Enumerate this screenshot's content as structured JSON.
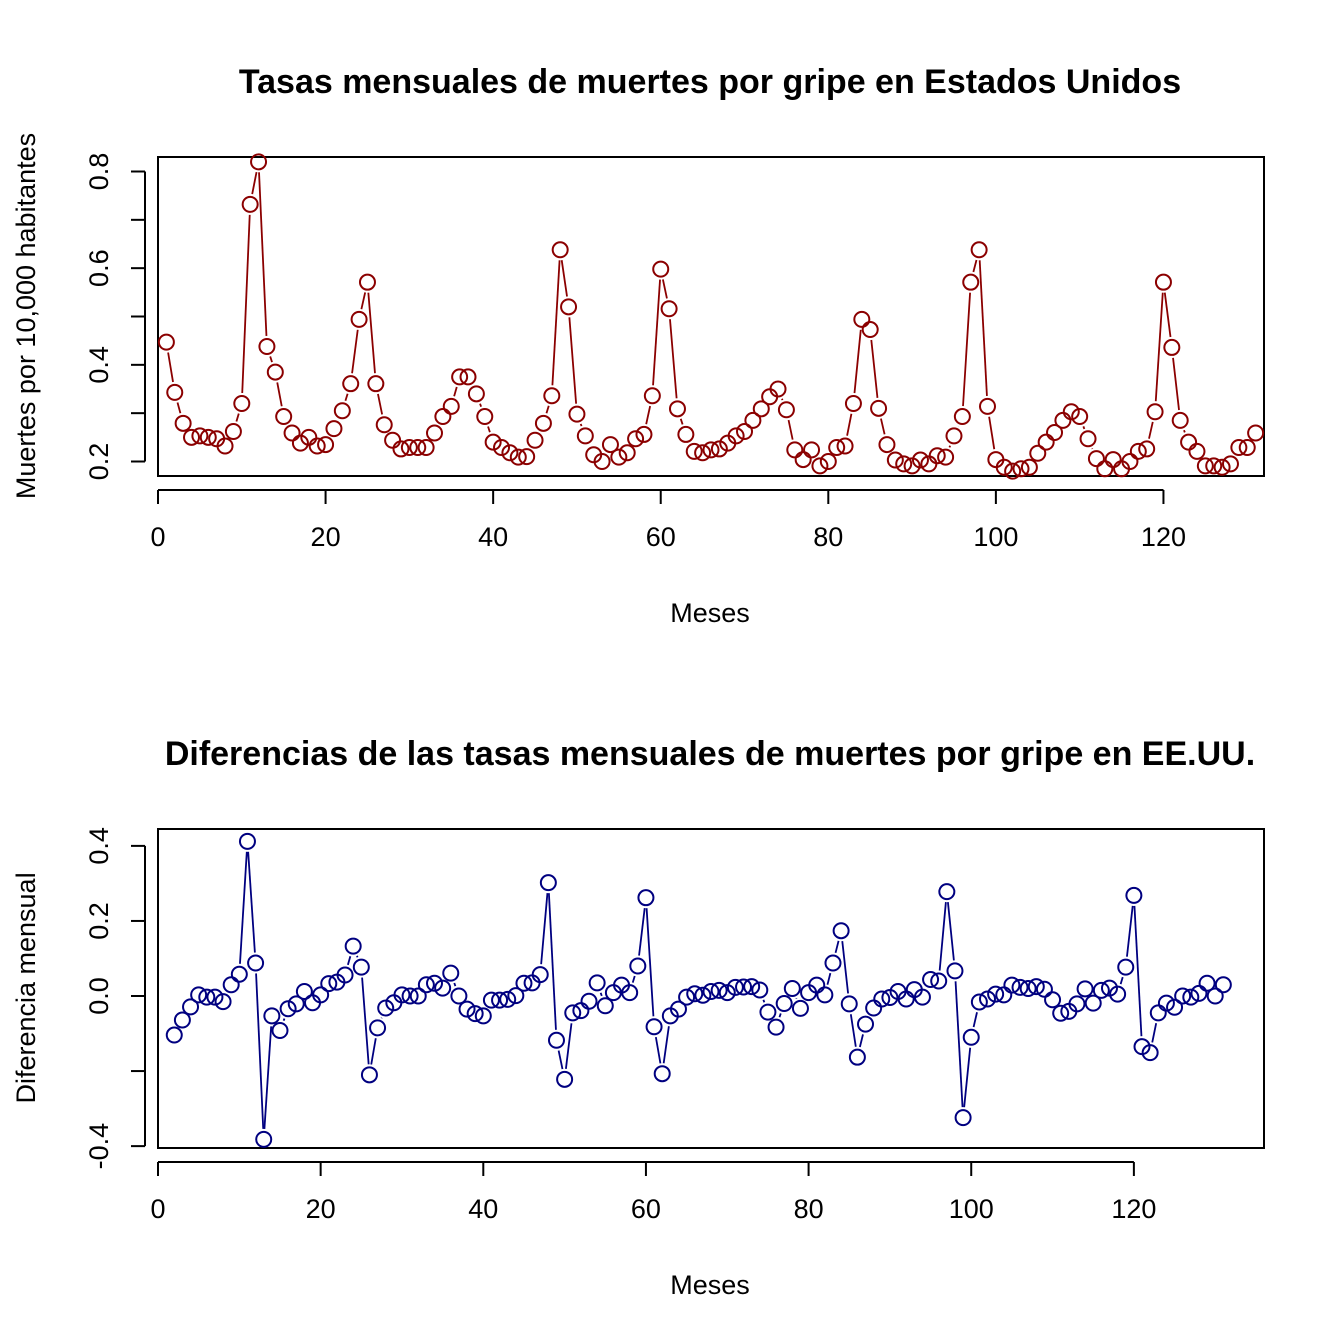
{
  "chart_data": [
    {
      "type": "line",
      "style": "points-and-lines",
      "title": "Tasas mensuales de muertes por gripe en Estados Unidos",
      "xlabel": "Meses",
      "ylabel": "Muertes por 10,000 habitantes",
      "color": "#8b0000",
      "xlim": [
        0,
        132
      ],
      "ylim": [
        0.17,
        0.83
      ],
      "xticks": [
        0,
        20,
        40,
        60,
        80,
        100,
        120
      ],
      "xtick_labels": [
        "0",
        "20",
        "40",
        "60",
        "80",
        "100",
        "120"
      ],
      "yticks": [
        0.2,
        0.4,
        0.6,
        0.8
      ],
      "ytick_labels": [
        "0.2",
        "0.4",
        "0.6",
        "0.8"
      ],
      "yminor": [
        0.3,
        0.5,
        0.7
      ],
      "x_start": 1,
      "values": [
        0.447,
        0.343,
        0.279,
        0.25,
        0.253,
        0.25,
        0.247,
        0.232,
        0.262,
        0.32,
        0.732,
        0.82,
        0.438,
        0.385,
        0.293,
        0.259,
        0.238,
        0.25,
        0.232,
        0.235,
        0.268,
        0.305,
        0.361,
        0.494,
        0.571,
        0.361,
        0.276,
        0.244,
        0.226,
        0.229,
        0.229,
        0.229,
        0.259,
        0.293,
        0.314,
        0.375,
        0.375,
        0.34,
        0.293,
        0.24,
        0.229,
        0.218,
        0.209,
        0.21,
        0.244,
        0.279,
        0.336,
        0.638,
        0.52,
        0.298,
        0.253,
        0.214,
        0.2,
        0.235,
        0.209,
        0.218,
        0.247,
        0.256,
        0.336,
        0.598,
        0.516,
        0.309,
        0.256,
        0.221,
        0.218,
        0.224,
        0.226,
        0.238,
        0.253,
        0.262,
        0.285,
        0.309,
        0.334,
        0.35,
        0.307,
        0.224,
        0.204,
        0.224,
        0.191,
        0.2,
        0.229,
        0.232,
        0.32,
        0.494,
        0.473,
        0.31,
        0.235,
        0.203,
        0.195,
        0.191,
        0.203,
        0.195,
        0.212,
        0.209,
        0.253,
        0.293,
        0.571,
        0.638,
        0.314,
        0.204,
        0.188,
        0.18,
        0.185,
        0.188,
        0.217,
        0.24,
        0.26,
        0.285,
        0.303,
        0.293,
        0.247,
        0.206,
        0.185,
        0.204,
        0.185,
        0.2,
        0.221,
        0.226,
        0.303,
        0.571,
        0.436,
        0.285,
        0.24,
        0.221,
        0.191,
        0.191,
        0.188,
        0.195,
        0.229,
        0.229,
        0.259
      ]
    },
    {
      "type": "line",
      "style": "points-and-lines",
      "title": "Diferencias de las tasas mensuales de muertes por gripe en EE.UU.",
      "xlabel": "Meses",
      "ylabel": "Diferencia mensual",
      "color": "#000080",
      "xlim": [
        0,
        136
      ],
      "ylim": [
        -0.405,
        0.445
      ],
      "xticks": [
        0,
        20,
        40,
        60,
        80,
        100,
        120
      ],
      "xtick_labels": [
        "0",
        "20",
        "40",
        "60",
        "80",
        "100",
        "120"
      ],
      "yticks": [
        -0.4,
        0.0,
        0.2,
        0.4
      ],
      "ytick_labels": [
        "-0.4",
        "0.0",
        "0.2",
        "0.4"
      ],
      "yminor": [
        -0.2
      ],
      "x_start": 2,
      "values": [
        -0.104,
        -0.064,
        -0.029,
        0.003,
        -0.003,
        -0.003,
        -0.015,
        0.03,
        0.058,
        0.412,
        0.088,
        -0.382,
        -0.053,
        -0.092,
        -0.034,
        -0.021,
        0.012,
        -0.018,
        0.003,
        0.033,
        0.037,
        0.056,
        0.133,
        0.077,
        -0.21,
        -0.085,
        -0.032,
        -0.018,
        0.003,
        0.0,
        0.0,
        0.03,
        0.034,
        0.021,
        0.061,
        0.0,
        -0.035,
        -0.047,
        -0.053,
        -0.011,
        -0.011,
        -0.009,
        0.001,
        0.034,
        0.035,
        0.057,
        0.302,
        -0.118,
        -0.222,
        -0.045,
        -0.039,
        -0.014,
        0.035,
        -0.026,
        0.009,
        0.029,
        0.009,
        0.08,
        0.262,
        -0.082,
        -0.207,
        -0.053,
        -0.035,
        -0.003,
        0.006,
        0.002,
        0.012,
        0.015,
        0.009,
        0.023,
        0.024,
        0.025,
        0.016,
        -0.043,
        -0.083,
        -0.02,
        0.02,
        -0.033,
        0.009,
        0.029,
        0.003,
        0.088,
        0.174,
        -0.021,
        -0.163,
        -0.075,
        -0.032,
        -0.008,
        -0.004,
        0.012,
        -0.008,
        0.017,
        -0.003,
        0.044,
        0.04,
        0.278,
        0.067,
        -0.324,
        -0.11,
        -0.016,
        -0.008,
        0.005,
        0.003,
        0.029,
        0.023,
        0.02,
        0.025,
        0.018,
        -0.01,
        -0.046,
        -0.041,
        -0.021,
        0.019,
        -0.019,
        0.015,
        0.021,
        0.005,
        0.077,
        0.268,
        -0.135,
        -0.151,
        -0.045,
        -0.019,
        -0.03,
        0.0,
        -0.003,
        0.007,
        0.034,
        0.0,
        0.03
      ]
    }
  ]
}
